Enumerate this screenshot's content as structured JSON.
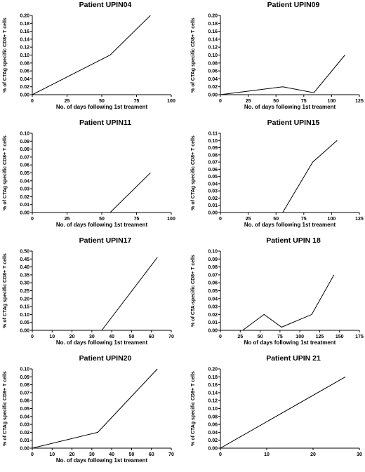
{
  "chart_data": [
    {
      "type": "line",
      "title": "Patient UPIN04",
      "xlabel": "No. of days following 1st treament",
      "ylabel": "% of CTAg specific CD8+ T cells",
      "xlim": [
        0,
        100
      ],
      "ylim": [
        0,
        0.2
      ],
      "xticks": [
        "0",
        "25",
        "50",
        "75",
        "100"
      ],
      "yticks": [
        "0.00",
        "0.02",
        "0.04",
        "0.06",
        "0.08",
        "0.10",
        "0.12",
        "0.14",
        "0.16",
        "0.18",
        "0.20"
      ],
      "x": [
        0,
        56,
        85
      ],
      "y": [
        0,
        0.1,
        0.2
      ]
    },
    {
      "type": "line",
      "title": "Patient UPIN09",
      "xlabel": "No. of days following 1st treament",
      "ylabel": "% of CTAg specific CD8+ T cells",
      "xlim": [
        0,
        125
      ],
      "ylim": [
        0,
        0.2
      ],
      "xticks": [
        "0",
        "25",
        "50",
        "75",
        "100",
        "125"
      ],
      "yticks": [
        "0.00",
        "0.02",
        "0.04",
        "0.06",
        "0.08",
        "0.10",
        "0.12",
        "0.14",
        "0.16",
        "0.18",
        "0.20"
      ],
      "x": [
        0,
        56,
        84,
        112
      ],
      "y": [
        0,
        0.02,
        0.005,
        0.1
      ]
    },
    {
      "type": "line",
      "title": "Patient UPIN11",
      "xlabel": "No. of days following 1st treament",
      "ylabel": "% of CTAg specific CD8+ T cells",
      "xlim": [
        0,
        100
      ],
      "ylim": [
        0,
        0.1
      ],
      "xticks": [
        "0",
        "25",
        "50",
        "75",
        "100"
      ],
      "yticks": [
        "0.00",
        "0.01",
        "0.02",
        "0.03",
        "0.04",
        "0.05",
        "0.06",
        "0.07",
        "0.08",
        "0.09",
        "0.10"
      ],
      "x": [
        0,
        56,
        85
      ],
      "y": [
        0,
        0,
        0.05
      ]
    },
    {
      "type": "line",
      "title": "Patient UPIN15",
      "xlabel": "No. of days following 1st treament",
      "ylabel": "% of CTAg specific CD8+ T cells",
      "xlim": [
        0,
        125
      ],
      "ylim": [
        0,
        0.11
      ],
      "xticks": [
        "0",
        "25",
        "50",
        "75",
        "100",
        "125"
      ],
      "yticks": [
        "0.00",
        "0.01",
        "0.02",
        "0.03",
        "0.04",
        "0.05",
        "0.06",
        "0.07",
        "0.08",
        "0.09",
        "0.10",
        "0.11"
      ],
      "x": [
        56,
        83,
        105
      ],
      "y": [
        0,
        0.07,
        0.1
      ]
    },
    {
      "type": "line",
      "title": "Patient UPIN17",
      "xlabel": "No. of days following 1st treament",
      "ylabel": "% of CTAg specific CD8+ T cells",
      "xlim": [
        0,
        70
      ],
      "ylim": [
        0,
        0.5
      ],
      "xticks": [
        "0",
        "10",
        "20",
        "30",
        "40",
        "50",
        "60",
        "70"
      ],
      "yticks": [
        "0.00",
        "0.05",
        "0.10",
        "0.15",
        "0.20",
        "0.25",
        "0.30",
        "0.35",
        "0.40",
        "0.45",
        "0.50"
      ],
      "x": [
        35,
        63
      ],
      "y": [
        0,
        0.46
      ]
    },
    {
      "type": "line",
      "title": "Patient UPIN 18",
      "xlabel": "No of days following 1st treatment",
      "ylabel": "% of CTA-specific CD8+ T cells",
      "xlim": [
        0,
        175
      ],
      "ylim": [
        0,
        0.1
      ],
      "xticks": [
        "0",
        "25",
        "50",
        "75",
        "100",
        "125",
        "150",
        "175"
      ],
      "yticks": [
        "0.00",
        "0.01",
        "0.02",
        "0.03",
        "0.04",
        "0.05",
        "0.06",
        "0.07",
        "0.08",
        "0.09",
        "0.10"
      ],
      "x": [
        28,
        55,
        77,
        115,
        143
      ],
      "y": [
        0,
        0.02,
        0.004,
        0.02,
        0.07
      ]
    },
    {
      "type": "line",
      "title": "Patient UPIN20",
      "xlabel": "No. of days following 1st treament",
      "ylabel": "% of CTAg specific CD8+ T cells",
      "xlim": [
        0,
        70
      ],
      "ylim": [
        0,
        0.1
      ],
      "xticks": [
        "0",
        "10",
        "20",
        "30",
        "40",
        "50",
        "60",
        "70"
      ],
      "yticks": [
        "0.00",
        "0.01",
        "0.02",
        "0.03",
        "0.04",
        "0.05",
        "0.06",
        "0.07",
        "0.08",
        "0.09",
        "0.10"
      ],
      "x": [
        0,
        33,
        63
      ],
      "y": [
        0,
        0.02,
        0.1
      ]
    },
    {
      "type": "line",
      "title": "Patient UPIN 21",
      "xlabel": "",
      "ylabel": "% of CTAg specific CD8+ T cells",
      "xlim": [
        0,
        30
      ],
      "ylim": [
        0,
        0.2
      ],
      "xticks": [
        "0",
        "10",
        "20",
        "30"
      ],
      "yticks": [
        "0.00",
        "0.02",
        "0.04",
        "0.06",
        "0.08",
        "0.10",
        "0.12",
        "0.14",
        "0.16",
        "0.18",
        "0.20"
      ],
      "x": [
        0,
        27
      ],
      "y": [
        0,
        0.18
      ]
    }
  ]
}
